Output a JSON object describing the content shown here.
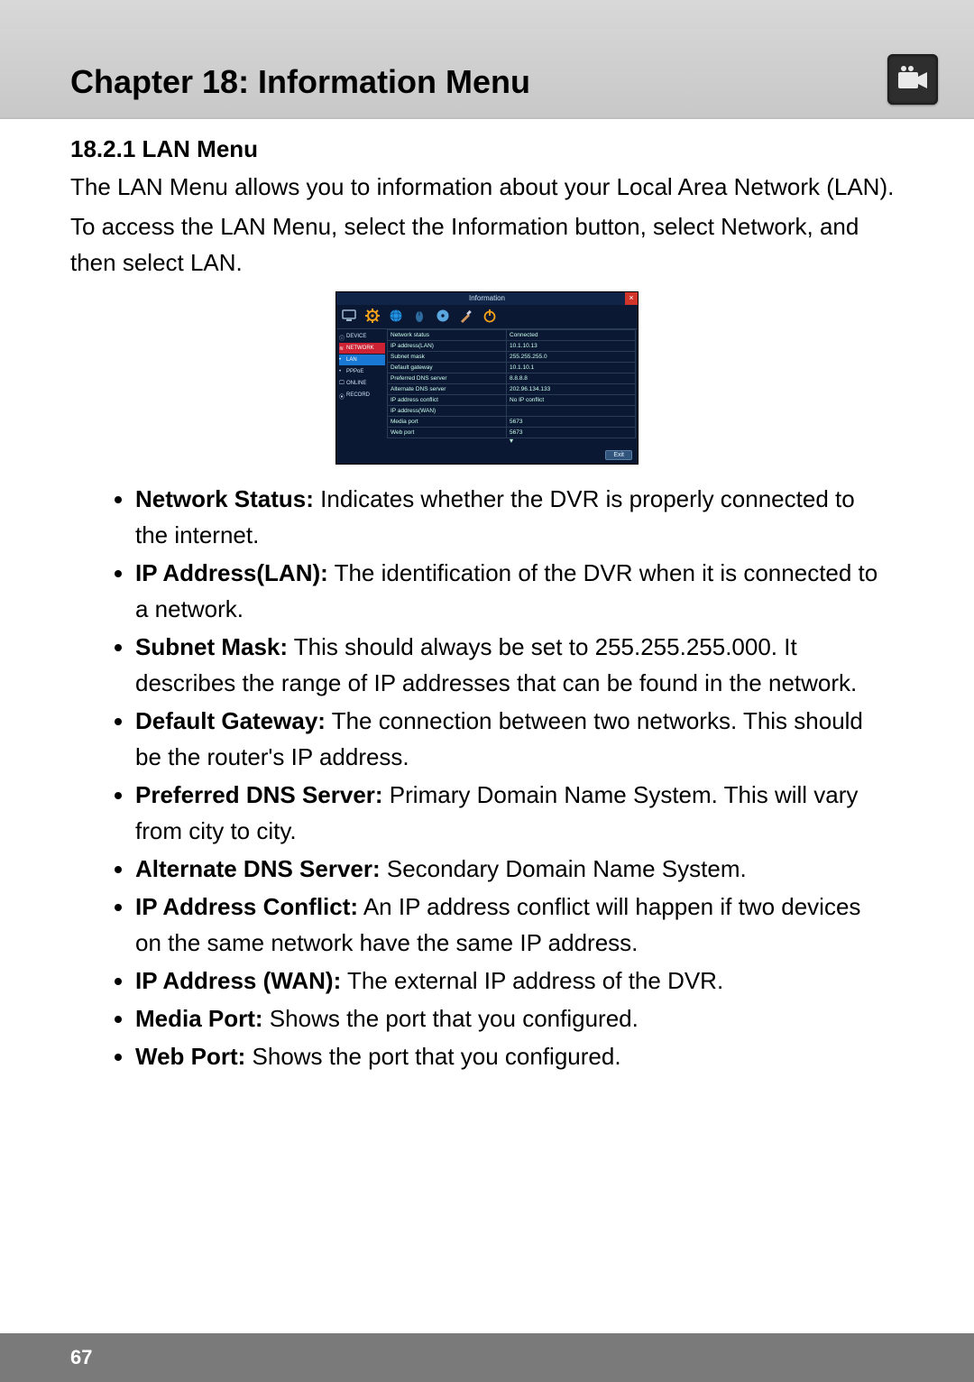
{
  "chapter_title": "Chapter 18: Information Menu",
  "page_number": "67",
  "section_heading": "18.2.1 LAN Menu",
  "intro_p1": "The LAN Menu allows you to information about your Local Area Network (LAN).",
  "intro_p2": "To access the LAN Menu, select the Information button, select Network, and then select LAN.",
  "figure": {
    "title": "Information",
    "exit_label": "Exit",
    "close_glyph": "×",
    "side_items": [
      "DEVICE",
      "NETWORK",
      "LAN",
      "PPPoE",
      "ONLINE",
      "RECORD"
    ],
    "side_selected_index": 1,
    "side_highlight_index": 2,
    "icon_colors": {
      "gear": "#f4a21a",
      "globe": "#2393e5",
      "mouse": "#2e6b9e",
      "cd": "#5aa7e0",
      "brush": "#d6975f",
      "power": "#f4a21a",
      "toolbar_left": "#9fb9cf"
    },
    "rows": [
      {
        "k": "Network status",
        "v": "Connected"
      },
      {
        "k": "IP address(LAN)",
        "v": "10.1.10.13"
      },
      {
        "k": "Subnet mask",
        "v": "255.255.255.0"
      },
      {
        "k": "Default gateway",
        "v": "10.1.10.1"
      },
      {
        "k": "Preferred DNS server",
        "v": "8.8.8.8"
      },
      {
        "k": "Alternate DNS server",
        "v": "202.96.134.133"
      },
      {
        "k": "IP address conflict",
        "v": "No IP conflict"
      },
      {
        "k": "IP address(WAN)",
        "v": ""
      },
      {
        "k": "Media port",
        "v": "5673"
      },
      {
        "k": "Web port",
        "v": "5673"
      }
    ]
  },
  "bullets": [
    {
      "label": "Network Status:",
      "text": " Indicates whether the DVR is properly connected to the internet."
    },
    {
      "label": "IP Address(LAN):",
      "text": " The identification of the DVR when it is connected to a network."
    },
    {
      "label": "Subnet Mask:",
      "text": " This should always be set to 255.255.255.000. It describes the range of IP addresses that can be found in the network."
    },
    {
      "label": "Default Gateway:",
      "text": " The connection between two networks. This should be the router's IP address."
    },
    {
      "label": "Preferred DNS Server:",
      "text": " Primary Domain Name System. This will vary from city to city."
    },
    {
      "label": "Alternate DNS Server:",
      "text": " Secondary Domain Name System."
    },
    {
      "label": "IP Address Conflict:",
      "text": " An IP address conflict will happen if two devices on the same network have the same IP address."
    },
    {
      "label": "IP Address (WAN):",
      "text": " The external IP address of the DVR."
    },
    {
      "label": "Media Port:",
      "text": " Shows the port that you configured."
    },
    {
      "label": "Web Port:",
      "text": " Shows the port that you configured."
    }
  ]
}
